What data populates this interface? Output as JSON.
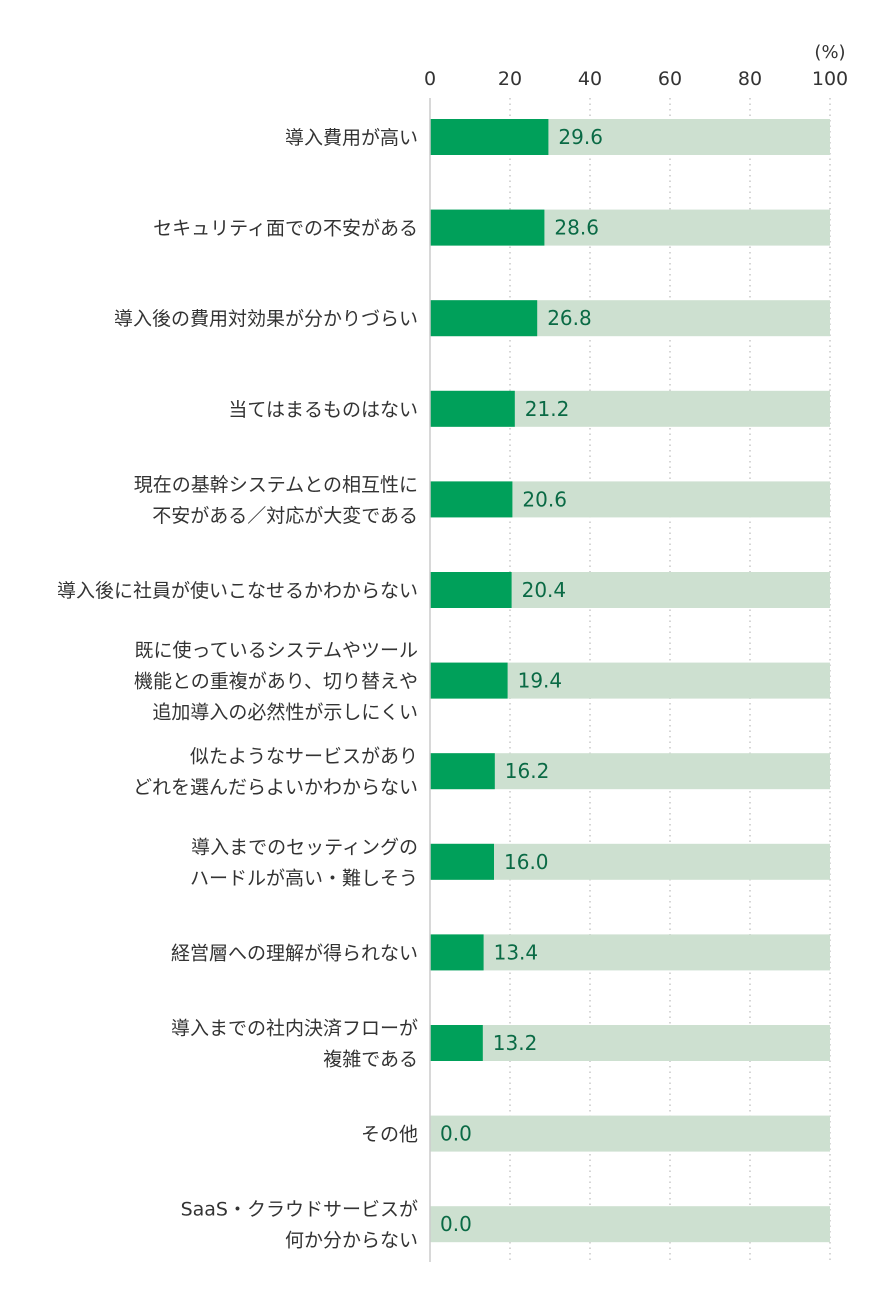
{
  "chart_data": {
    "type": "bar",
    "orientation": "horizontal",
    "unit": "(%)",
    "xlim": [
      0,
      100
    ],
    "ticks": [
      "0",
      "20",
      "40",
      "60",
      "80",
      "100"
    ],
    "grid": "dotted-vertical",
    "categories": [
      [
        "導入費用が高い"
      ],
      [
        "セキュリティ面での不安がある"
      ],
      [
        "導入後の費用対効果が分かりづらい"
      ],
      [
        "当てはまるものはない"
      ],
      [
        "現在の基幹システムとの相互性に",
        "不安がある／対応が大変である"
      ],
      [
        "導入後に社員が使いこなせるかわからない"
      ],
      [
        "既に使っているシステムやツール",
        "機能との重複があり、切り替えや",
        "追加導入の必然性が示しにくい"
      ],
      [
        "似たようなサービスがあり",
        "どれを選んだらよいかわからない"
      ],
      [
        "導入までのセッティングの",
        "ハードルが高い・難しそう"
      ],
      [
        "経営層への理解が得られない"
      ],
      [
        "導入までの社内決済フローが",
        "複雑である"
      ],
      [
        "その他"
      ],
      [
        "SaaS・クラウドサービスが",
        "何か分からない"
      ]
    ],
    "values": [
      29.6,
      28.6,
      26.8,
      21.2,
      20.6,
      20.4,
      19.4,
      16.2,
      16.0,
      13.4,
      13.2,
      0.0,
      0.0
    ],
    "value_labels": [
      "29.6",
      "28.6",
      "26.8",
      "21.2",
      "20.6",
      "20.4",
      "19.4",
      "16.2",
      "16.0",
      "13.4",
      "13.2",
      "0.0",
      "0.0"
    ],
    "colors": {
      "bar": "#00a05a",
      "track": "#cde0d0",
      "value_text": "#0a6a45",
      "grid": "#bbbbbb",
      "axis": "#cccccc",
      "text": "#333333"
    }
  }
}
